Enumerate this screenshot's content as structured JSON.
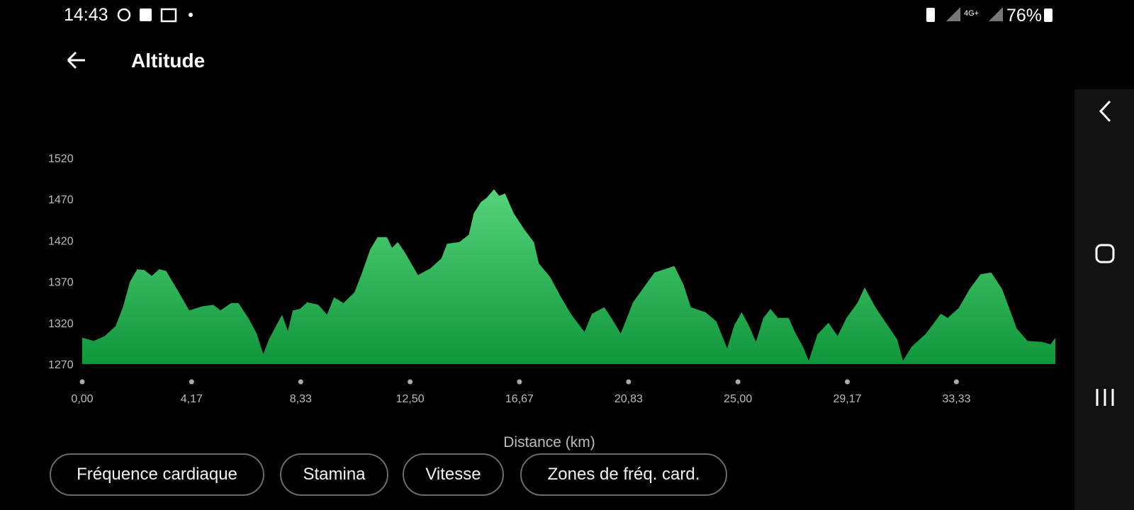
{
  "status_bar": {
    "time": "14:43",
    "battery": "76%"
  },
  "header": {
    "title": "Altitude"
  },
  "chart_data": {
    "type": "area",
    "x_label": "Distance (km)",
    "color": "#2fb457",
    "xlim": [
      0,
      37.1
    ],
    "ylim": [
      1270,
      1520
    ],
    "xticks": [
      {
        "value": 0,
        "label": "0,00"
      },
      {
        "value": 4.17,
        "label": "4,17"
      },
      {
        "value": 8.33,
        "label": "8,33"
      },
      {
        "value": 12.5,
        "label": "12,50"
      },
      {
        "value": 16.67,
        "label": "16,67"
      },
      {
        "value": 20.83,
        "label": "20,83"
      },
      {
        "value": 25,
        "label": "25,00"
      },
      {
        "value": 29.17,
        "label": "29,17"
      },
      {
        "value": 33.33,
        "label": "33,33"
      }
    ],
    "yticks": [
      1270,
      1320,
      1370,
      1420,
      1470,
      1520
    ],
    "x": [
      0,
      0.44,
      0.86,
      1.27,
      1.55,
      1.82,
      2.1,
      2.37,
      2.65,
      2.93,
      3.2,
      3.61,
      4.08,
      4.58,
      5.0,
      5.27,
      5.68,
      5.96,
      6.37,
      6.65,
      6.9,
      7.12,
      7.4,
      7.62,
      7.84,
      8.03,
      8.3,
      8.58,
      9.0,
      9.33,
      9.6,
      9.96,
      10.38,
      10.65,
      10.98,
      11.26,
      11.62,
      11.81,
      12.03,
      12.31,
      12.8,
      13.27,
      13.69,
      13.91,
      14.38,
      14.74,
      14.93,
      15.21,
      15.4,
      15.7,
      15.9,
      16.12,
      16.45,
      16.86,
      17.22,
      17.41,
      17.83,
      18.24,
      18.65,
      19.15,
      19.43,
      19.9,
      20.17,
      20.53,
      21.0,
      21.41,
      21.82,
      22.57,
      22.93,
      23.2,
      23.76,
      24.17,
      24.59,
      24.86,
      25.14,
      25.41,
      25.69,
      25.97,
      26.24,
      26.52,
      26.93,
      27.2,
      27.48,
      27.7,
      28.03,
      28.45,
      28.8,
      29.14,
      29.55,
      29.83,
      30.24,
      30.79,
      31.07,
      31.29,
      31.62,
      32.17,
      32.73,
      33.0,
      33.42,
      33.83,
      34.25,
      34.66,
      35.07,
      35.63,
      36.04,
      36.59,
      36.92,
      37.1
    ],
    "values": [
      1302,
      1298,
      1304,
      1316,
      1339,
      1370,
      1385,
      1384,
      1377,
      1385,
      1383,
      1361,
      1335,
      1340,
      1342,
      1335,
      1344,
      1344,
      1324,
      1307,
      1282,
      1300,
      1317,
      1330,
      1310,
      1335,
      1337,
      1345,
      1342,
      1330,
      1351,
      1344,
      1357,
      1379,
      1409,
      1424,
      1424,
      1411,
      1418,
      1405,
      1378,
      1386,
      1398,
      1416,
      1418,
      1427,
      1453,
      1467,
      1471,
      1482,
      1474,
      1477,
      1453,
      1433,
      1418,
      1392,
      1376,
      1352,
      1330,
      1309,
      1331,
      1339,
      1326,
      1307,
      1345,
      1363,
      1381,
      1389,
      1366,
      1339,
      1333,
      1322,
      1289,
      1317,
      1333,
      1317,
      1297,
      1326,
      1337,
      1326,
      1326,
      1307,
      1291,
      1274,
      1306,
      1320,
      1304,
      1326,
      1344,
      1363,
      1339,
      1313,
      1300,
      1274,
      1291,
      1307,
      1331,
      1326,
      1338,
      1361,
      1379,
      1381,
      1361,
      1313,
      1298,
      1297,
      1294,
      1302
    ]
  },
  "buttons": [
    "Fréquence cardiaque",
    "Stamina",
    "Vitesse",
    "Zones de fréq. card."
  ]
}
